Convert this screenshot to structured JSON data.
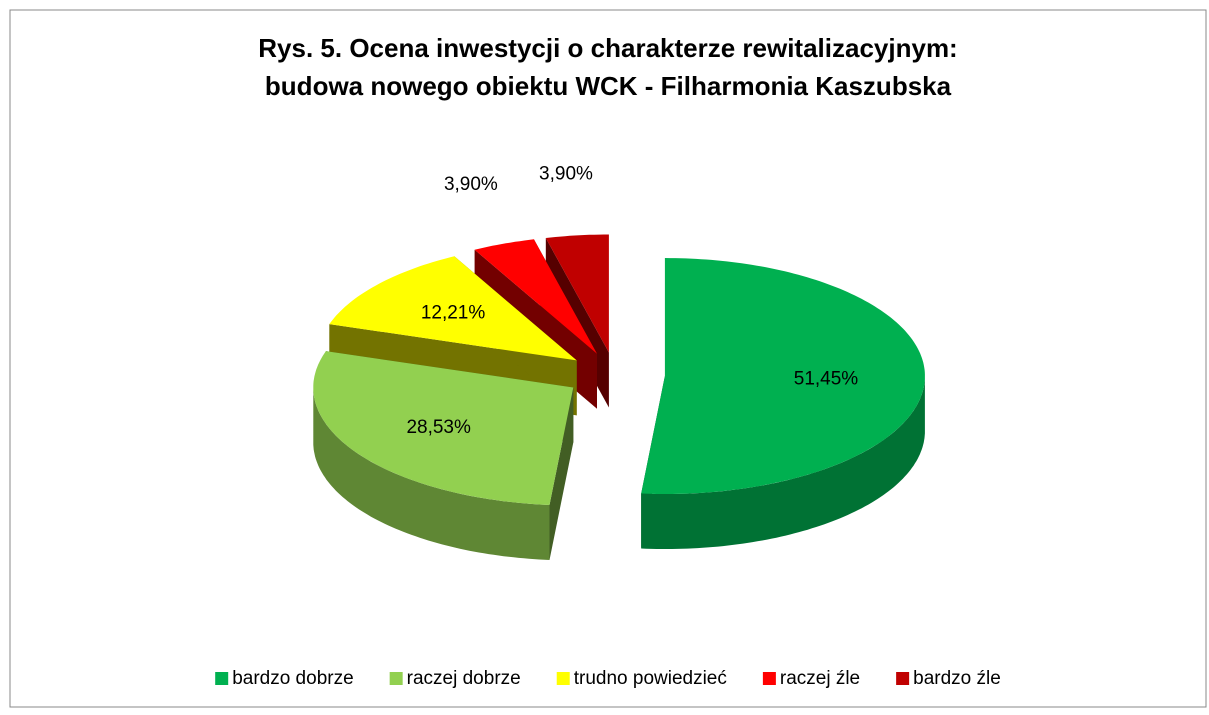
{
  "chart_data": {
    "type": "pie",
    "title": [
      "Rys. 5. Ocena inwestycji o charakterze rewitalizacyjnym:",
      "budowa nowego obiektu WCK - Filharmonia Kaszubska"
    ],
    "categories": [
      "bardzo dobrze",
      "raczej dobrze",
      "trudno powiedzieć",
      "raczej źle",
      "bardzo źle"
    ],
    "values": [
      51.45,
      28.53,
      12.21,
      3.9,
      3.9
    ],
    "value_labels": [
      "51,45%",
      "28,53%",
      "12,21%",
      "3,90%",
      "3,90%"
    ],
    "colors": [
      "#00b050",
      "#92d050",
      "#ffff00",
      "#ff0000",
      "#c00000"
    ],
    "legend": "bottom"
  }
}
